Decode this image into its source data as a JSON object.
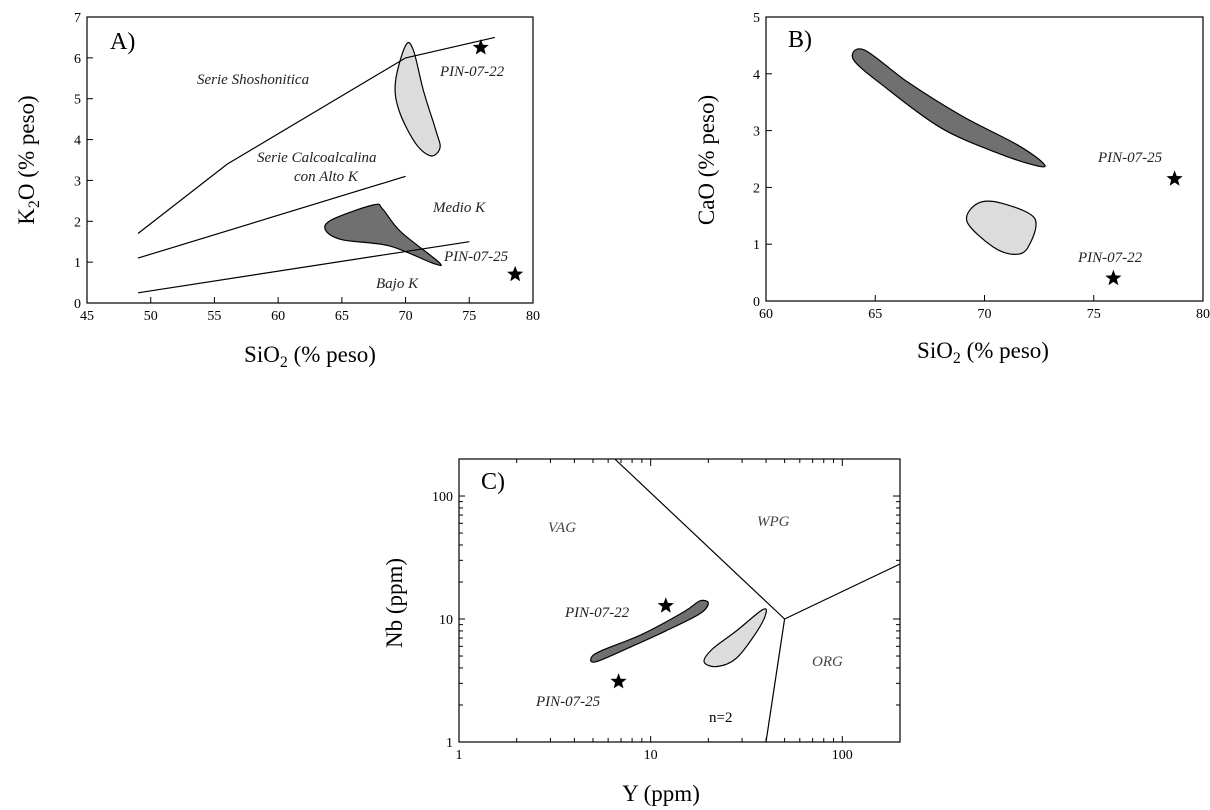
{
  "chart_data": [
    {
      "panel": "A)",
      "type": "scatter",
      "xlabel": "SiO2 (% peso)",
      "ylabel": "K2O (% peso)",
      "xlim": [
        45,
        80
      ],
      "ylim": [
        0,
        7
      ],
      "x_ticks": [
        45,
        50,
        55,
        60,
        65,
        70,
        75,
        80
      ],
      "y_ticks": [
        0,
        1,
        2,
        3,
        4,
        5,
        6,
        7
      ],
      "boundary_lines": [
        [
          [
            49,
            1.7
          ],
          [
            56,
            3.4
          ],
          [
            70,
            6.0
          ],
          [
            77,
            6.5
          ]
        ],
        [
          [
            49,
            1.1
          ],
          [
            70,
            3.1
          ]
        ],
        [
          [
            49,
            0.25
          ],
          [
            75,
            1.5
          ]
        ]
      ],
      "field_labels": [
        "Serie Shoshonitica",
        "Serie Calcoalcalina",
        "con Alto K",
        "Medio K",
        "Bajo K"
      ],
      "fields": [
        {
          "color": "#dcdcdc",
          "points": [
            [
              69.2,
              5.4
            ],
            [
              70.0,
              6.3
            ],
            [
              70.6,
              6.2
            ],
            [
              71.4,
              5.2
            ],
            [
              72.4,
              4.2
            ],
            [
              72.7,
              3.8
            ],
            [
              72.0,
              3.6
            ],
            [
              70.8,
              3.9
            ],
            [
              69.5,
              4.7
            ]
          ]
        },
        {
          "color": "#707070",
          "points": [
            [
              63.7,
              1.8
            ],
            [
              64.3,
              2.05
            ],
            [
              67.5,
              2.4
            ],
            [
              68.2,
              2.3
            ],
            [
              69.6,
              1.75
            ],
            [
              72.6,
              1.0
            ],
            [
              72.1,
              0.98
            ],
            [
              68.7,
              1.4
            ],
            [
              65.0,
              1.55
            ]
          ]
        }
      ],
      "samples": [
        {
          "name": "PIN-07-22",
          "x": 75.9,
          "y": 6.25
        },
        {
          "name": "PIN-07-25",
          "x": 78.6,
          "y": 0.7
        }
      ]
    },
    {
      "panel": "B)",
      "type": "scatter",
      "xlabel": "SiO2 (% peso)",
      "ylabel": "CaO (% peso)",
      "xlim": [
        60,
        80
      ],
      "ylim": [
        0,
        5
      ],
      "x_ticks": [
        60,
        65,
        70,
        75,
        80
      ],
      "y_ticks": [
        0,
        1,
        2,
        3,
        4,
        5
      ],
      "fields": [
        {
          "color": "#707070",
          "points": [
            [
              64.0,
              4.25
            ],
            [
              64.5,
              4.42
            ],
            [
              66.5,
              3.85
            ],
            [
              69.0,
              3.25
            ],
            [
              71.5,
              2.75
            ],
            [
              72.7,
              2.42
            ],
            [
              72.4,
              2.38
            ],
            [
              70.5,
              2.62
            ],
            [
              68.0,
              3.05
            ],
            [
              65.5,
              3.75
            ]
          ]
        },
        {
          "color": "#dcdcdc",
          "points": [
            [
              69.2,
              1.4
            ],
            [
              69.7,
              1.72
            ],
            [
              70.8,
              1.72
            ],
            [
              72.3,
              1.45
            ],
            [
              72.0,
              0.95
            ],
            [
              71.4,
              0.82
            ],
            [
              70.4,
              0.95
            ]
          ]
        }
      ],
      "samples": [
        {
          "name": "PIN-07-25",
          "x": 78.7,
          "y": 2.15
        },
        {
          "name": "PIN-07-22",
          "x": 75.9,
          "y": 0.4
        }
      ]
    },
    {
      "panel": "C)",
      "type": "scatter",
      "xlabel": "Y (ppm)",
      "ylabel": "Nb (ppm)",
      "xscale": "log",
      "yscale": "log",
      "xlim": [
        1,
        200
      ],
      "ylim": [
        1,
        200
      ],
      "x_ticks": [
        1,
        10,
        100
      ],
      "y_ticks": [
        1,
        10,
        100
      ],
      "boundary_lines": [
        [
          [
            6.5,
            200
          ],
          [
            50,
            10
          ]
        ],
        [
          [
            50,
            10
          ],
          [
            200,
            28
          ]
        ],
        [
          [
            50,
            10
          ],
          [
            40,
            1
          ]
        ]
      ],
      "field_labels": [
        "VAG",
        "WPG",
        "ORG"
      ],
      "annotation": "n=2",
      "fields": [
        {
          "color": "#707070",
          "points": [
            [
              4.9,
              4.85
            ],
            [
              5.5,
              5.5
            ],
            [
              9.0,
              7.5
            ],
            [
              15.0,
              11.5
            ],
            [
              18.0,
              14.0
            ],
            [
              20.0,
              13.5
            ],
            [
              18.0,
              11.0
            ],
            [
              12.0,
              8.0
            ],
            [
              8.0,
              6.0
            ],
            [
              5.2,
              4.5
            ]
          ]
        },
        {
          "color": "#dcdcdc",
          "points": [
            [
              19.0,
              4.5
            ],
            [
              21.0,
              5.7
            ],
            [
              28.0,
              8.0
            ],
            [
              38.0,
              11.8
            ],
            [
              40.0,
              11.2
            ],
            [
              36.0,
              8.0
            ],
            [
              28.0,
              4.8
            ],
            [
              22.0,
              4.1
            ]
          ]
        }
      ],
      "samples": [
        {
          "name": "PIN-07-22",
          "x": 12.0,
          "y": 12.8
        },
        {
          "name": "PIN-07-25",
          "x": 6.8,
          "y": 3.1
        }
      ]
    }
  ]
}
